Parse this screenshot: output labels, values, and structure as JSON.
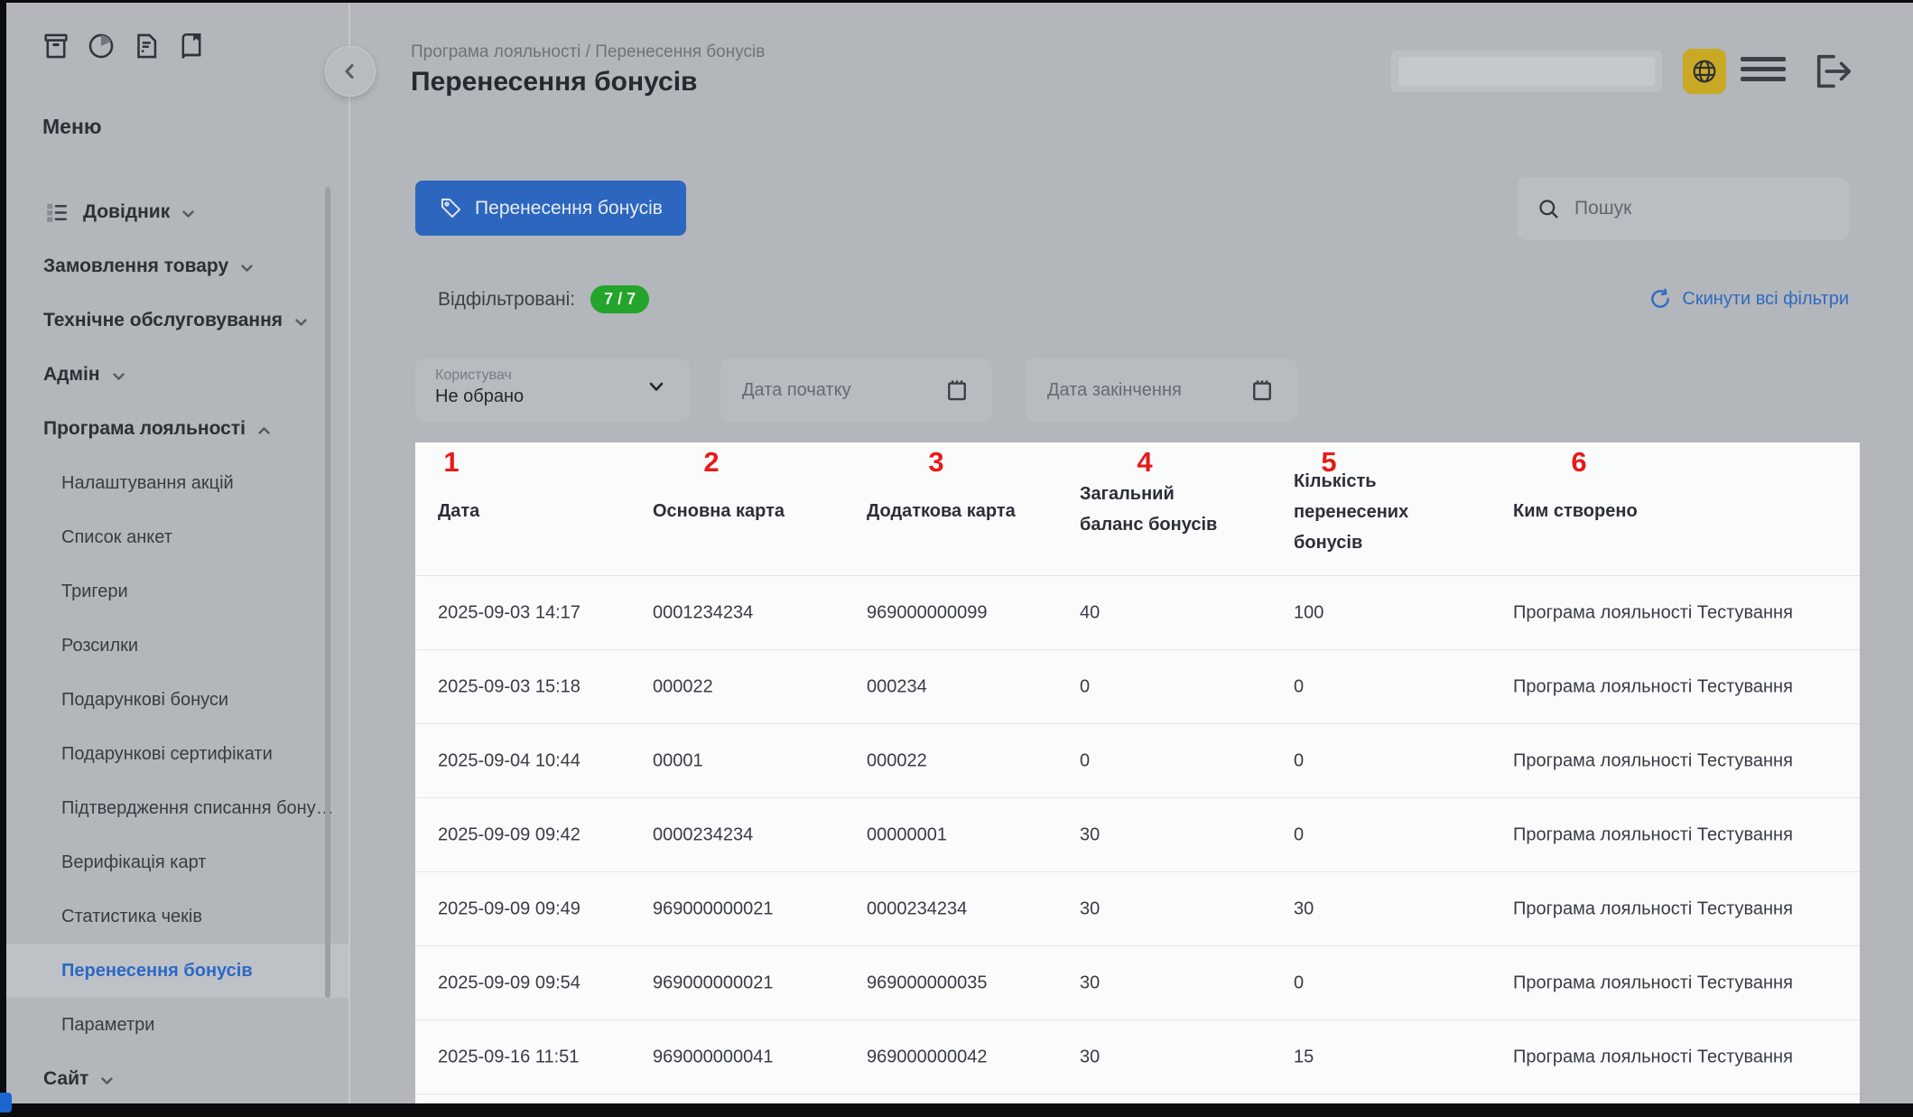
{
  "colors": {
    "accent_blue": "#2d66bf",
    "link_blue": "#2e6bc4",
    "badge_green": "#23a42a",
    "globe_yellow": "#c9a923",
    "annotation_red": "#e81a1a",
    "background_gray": "#b3b6ba",
    "table_white": "#fafbfb"
  },
  "sidebar": {
    "menu_title": "Меню",
    "top_icons": [
      "package-icon",
      "pie-chart-icon",
      "document-icon",
      "book-icon"
    ],
    "items": [
      {
        "label": "Довідник",
        "type": "top",
        "icon": "list-icon",
        "chevron": "down"
      },
      {
        "label": "Замовлення товару",
        "type": "top",
        "chevron": "down"
      },
      {
        "label": "Технічне обслуговування",
        "type": "top",
        "chevron": "down"
      },
      {
        "label": "Адмін",
        "type": "top",
        "chevron": "down"
      },
      {
        "label": "Програма лояльності",
        "type": "top",
        "chevron": "up"
      },
      {
        "label": "Налаштування акцій",
        "type": "sub"
      },
      {
        "label": "Список анкет",
        "type": "sub"
      },
      {
        "label": "Тригери",
        "type": "sub"
      },
      {
        "label": "Розсилки",
        "type": "sub"
      },
      {
        "label": "Подарункові бонуси",
        "type": "sub"
      },
      {
        "label": "Подарункові сертифікати",
        "type": "sub"
      },
      {
        "label": "Підтвердження списання бону…",
        "type": "sub"
      },
      {
        "label": "Верифікація карт",
        "type": "sub"
      },
      {
        "label": "Статистика чеків",
        "type": "sub"
      },
      {
        "label": "Перенесення бонусів",
        "type": "sub",
        "active": true
      },
      {
        "label": "Параметри",
        "type": "sub"
      },
      {
        "label": "Сайт",
        "type": "top",
        "chevron": "down"
      }
    ]
  },
  "header": {
    "breadcrumb": "Програма лояльності / Перенесення бонусів",
    "title": "Перенесення бонусів",
    "right_icons": [
      "globe-icon",
      "hamburger-icon",
      "logout-icon"
    ]
  },
  "toolbar": {
    "primary_button": "Перенесення бонусів",
    "search_placeholder": "Пошук",
    "filtered_label": "Відфільтровані:",
    "filtered_count": "7 / 7",
    "reset_filters": "Скинути всі фільтри"
  },
  "filters": {
    "user": {
      "label": "Користувач",
      "value": "Не обрано"
    },
    "date_start": "Дата початку",
    "date_end": "Дата закінчення"
  },
  "table": {
    "annotations": [
      "1",
      "2",
      "3",
      "4",
      "5",
      "6"
    ],
    "columns": [
      "Дата",
      "Основна карта",
      "Додаткова карта",
      "Загальний баланс бонусів",
      "Кількість перенесених бонусів",
      "Ким створено"
    ],
    "rows": [
      [
        "2025-09-03 14:17",
        "0001234234",
        "969000000099",
        "40",
        "100",
        "Програма лояльності Тестування"
      ],
      [
        "2025-09-03 15:18",
        "000022",
        "000234",
        "0",
        "0",
        "Програма лояльності Тестування"
      ],
      [
        "2025-09-04 10:44",
        "00001",
        "000022",
        "0",
        "0",
        "Програма лояльності Тестування"
      ],
      [
        "2025-09-09 09:42",
        "0000234234",
        "00000001",
        "30",
        "0",
        "Програма лояльності Тестування"
      ],
      [
        "2025-09-09 09:49",
        "969000000021",
        "0000234234",
        "30",
        "30",
        "Програма лояльності Тестування"
      ],
      [
        "2025-09-09 09:54",
        "969000000021",
        "969000000035",
        "30",
        "0",
        "Програма лояльності Тестування"
      ],
      [
        "2025-09-16 11:51",
        "969000000041",
        "969000000042",
        "30",
        "15",
        "Програма лояльності Тестування"
      ]
    ]
  }
}
